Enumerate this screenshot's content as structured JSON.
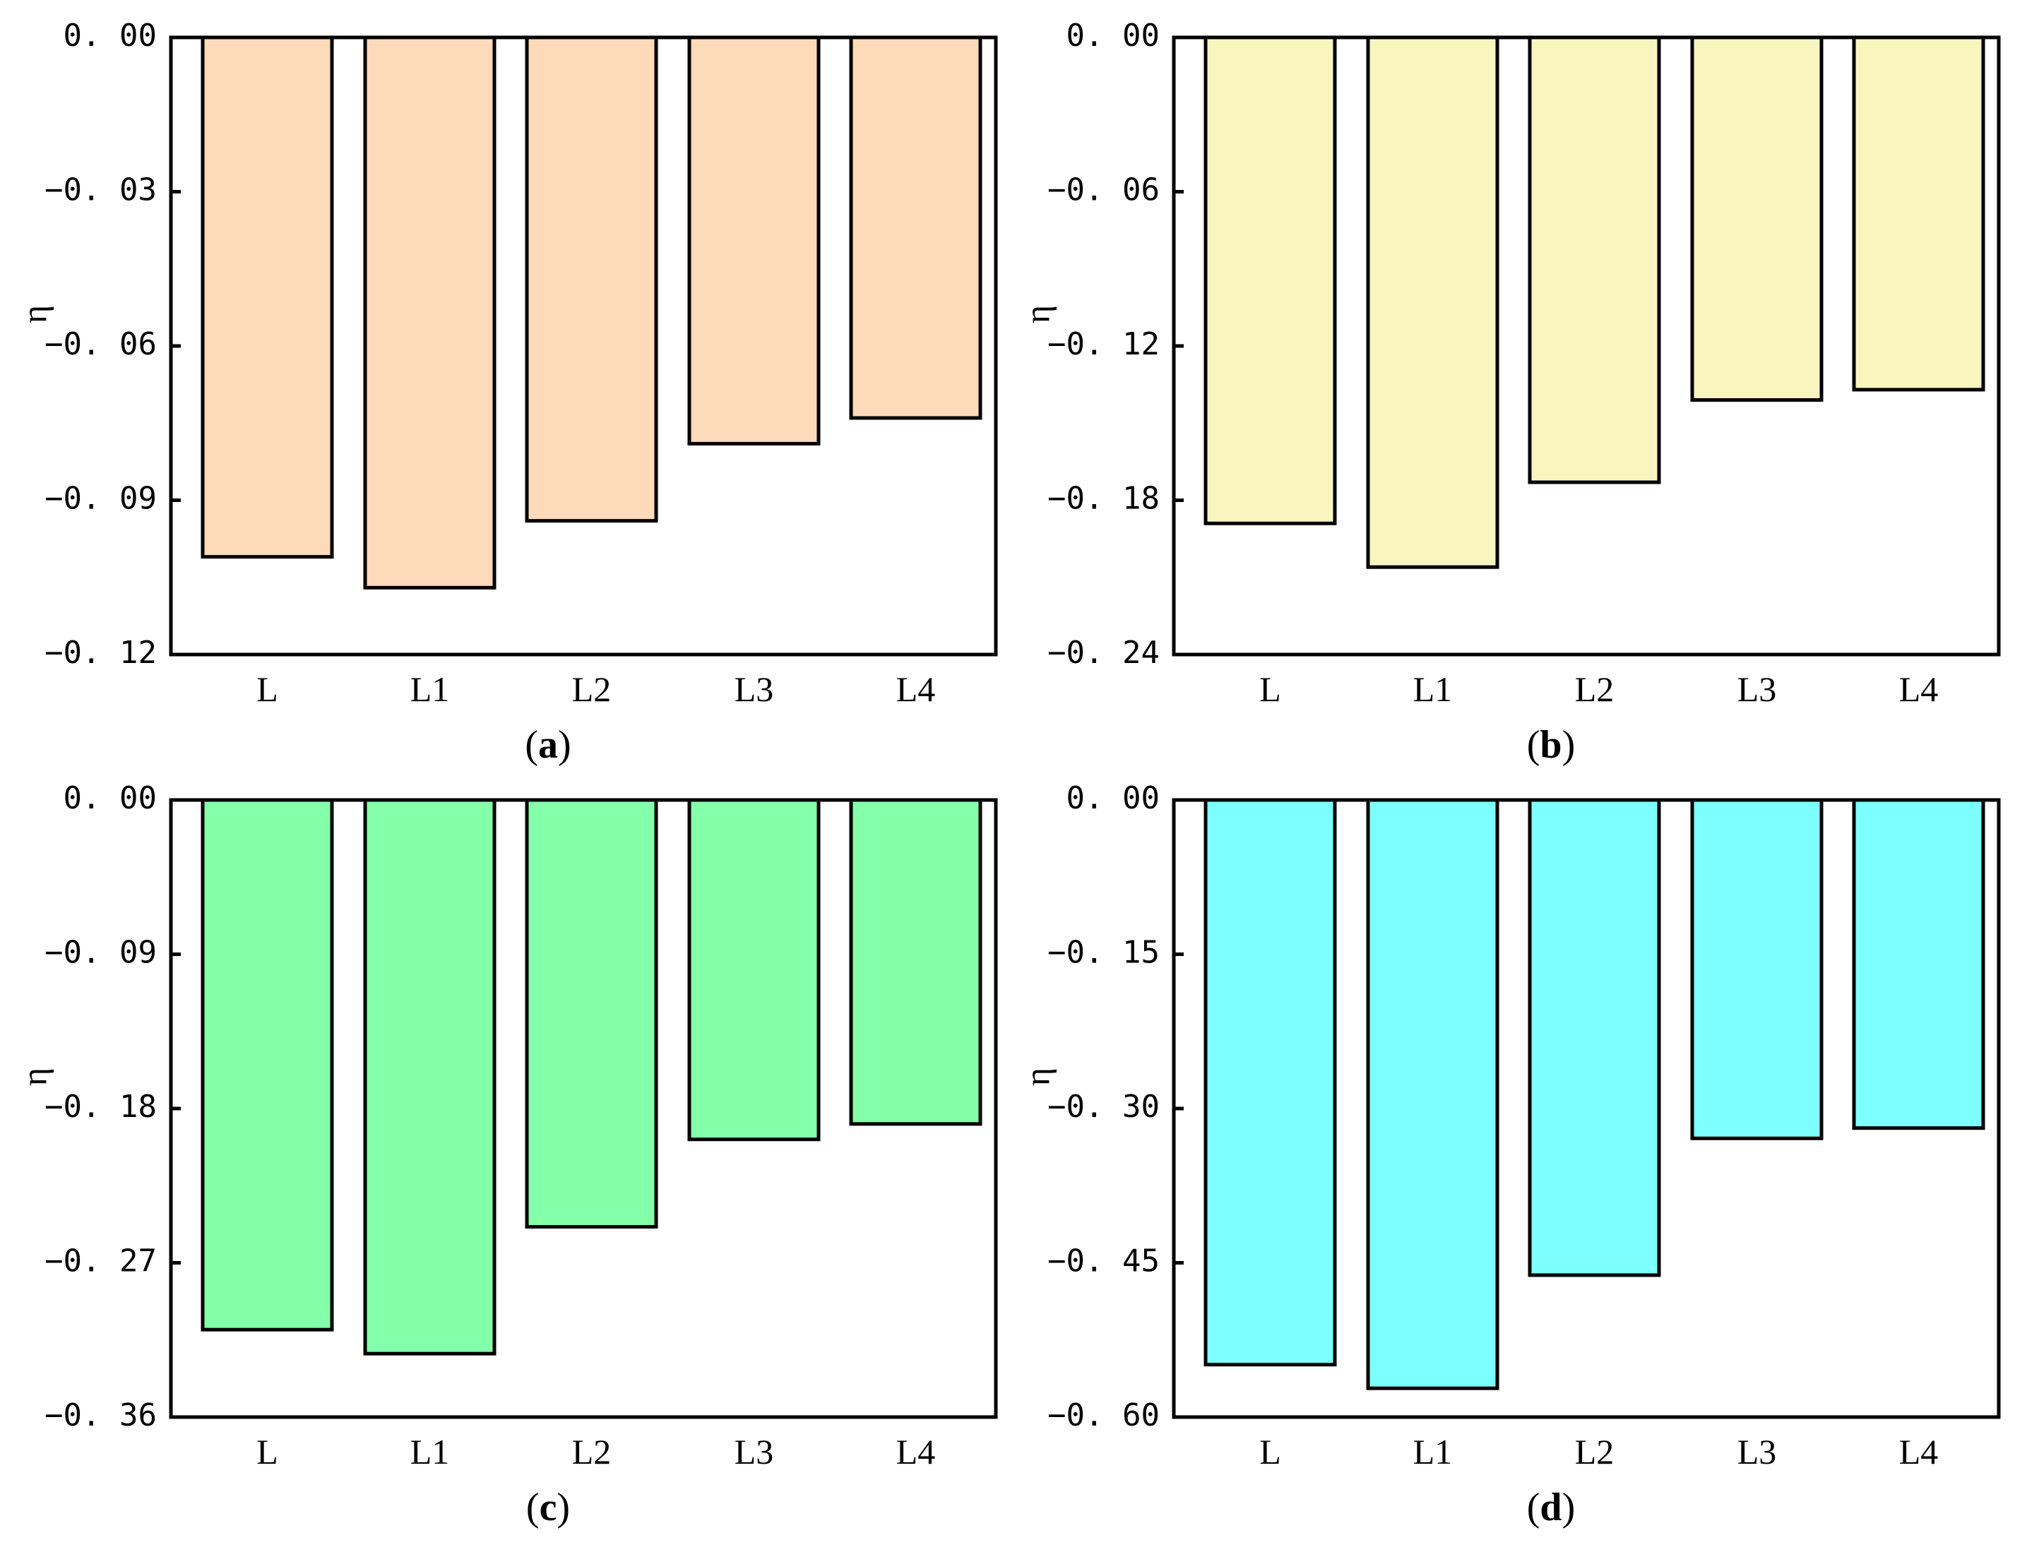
{
  "chart_data": [
    {
      "type": "bar",
      "panel": "a",
      "panel_label": "a",
      "title_open": "(",
      "title_close": ")",
      "categories": [
        "L",
        "L1",
        "L2",
        "L3",
        "L4"
      ],
      "values": [
        -0.101,
        -0.107,
        -0.094,
        -0.079,
        -0.074
      ],
      "ylabel": "η",
      "xlabel": "",
      "ylim": [
        -0.12,
        0.0
      ],
      "yticks": [
        0.0,
        -0.03,
        -0.06,
        -0.09,
        -0.12
      ],
      "ytick_labels": [
        "0. 00",
        "−0. 03",
        "−0. 06",
        "−0. 09",
        "−0. 12"
      ],
      "color": "#FDDABA"
    },
    {
      "type": "bar",
      "panel": "b",
      "panel_label": "b",
      "title_open": "(",
      "title_close": ")",
      "categories": [
        "L",
        "L1",
        "L2",
        "L3",
        "L4"
      ],
      "values": [
        -0.189,
        -0.206,
        -0.173,
        -0.141,
        -0.137
      ],
      "ylabel": "η",
      "xlabel": "",
      "ylim": [
        -0.24,
        0.0
      ],
      "yticks": [
        0.0,
        -0.06,
        -0.12,
        -0.18,
        -0.24
      ],
      "ytick_labels": [
        "0. 00",
        "−0. 06",
        "−0. 12",
        "−0. 18",
        "−0. 24"
      ],
      "color": "#F9F5BE"
    },
    {
      "type": "bar",
      "panel": "c",
      "panel_label": "c",
      "title_open": "(",
      "title_close": ")",
      "categories": [
        "L",
        "L1",
        "L2",
        "L3",
        "L4"
      ],
      "values": [
        -0.309,
        -0.323,
        -0.249,
        -0.198,
        -0.189
      ],
      "ylabel": "η",
      "xlabel": "",
      "ylim": [
        -0.36,
        0.0
      ],
      "yticks": [
        0.0,
        -0.09,
        -0.18,
        -0.27,
        -0.36
      ],
      "ytick_labels": [
        "0. 00",
        "−0. 09",
        "−0. 18",
        "−0. 27",
        "−0. 36"
      ],
      "color": "#84FFAA"
    },
    {
      "type": "bar",
      "panel": "d",
      "panel_label": "d",
      "title_open": "(",
      "title_close": ")",
      "categories": [
        "L",
        "L1",
        "L2",
        "L3",
        "L4"
      ],
      "values": [
        -0.549,
        -0.572,
        -0.462,
        -0.329,
        -0.319
      ],
      "ylabel": "η",
      "xlabel": "",
      "ylim": [
        -0.6,
        0.0
      ],
      "yticks": [
        0.0,
        -0.15,
        -0.3,
        -0.45,
        -0.6
      ],
      "ytick_labels": [
        "0. 00",
        "−0. 15",
        "−0. 30",
        "−0. 45",
        "−0. 60"
      ],
      "color": "#7EFFFF"
    }
  ]
}
